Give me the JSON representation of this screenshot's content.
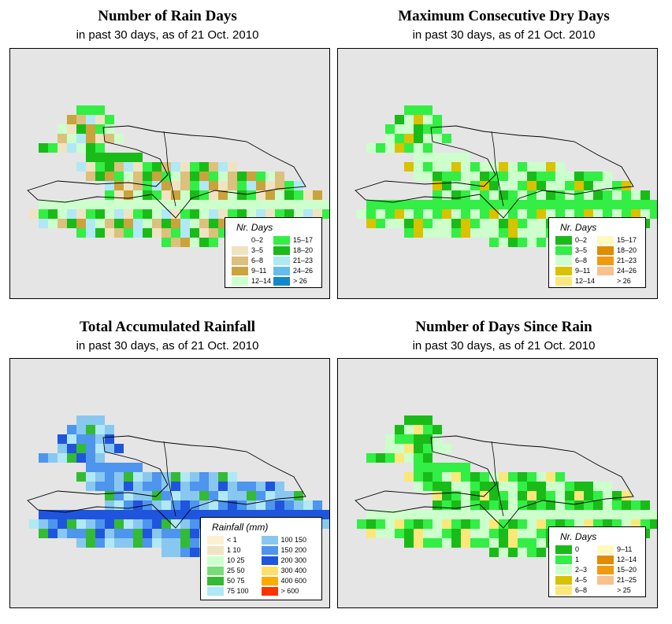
{
  "colors": {
    "background": "#e5e5e5",
    "coastline": "#000000"
  },
  "panels": [
    {
      "id": "rain-days",
      "title": "Number of Rain Days",
      "subtitle": "in past 30 days, as of  21 Oct. 2010",
      "legend_title": "Nr. Days",
      "legend_items": [
        {
          "label": "0–2",
          "color": "#ffffff"
        },
        {
          "label": "3–5",
          "color": "#f0e3c2"
        },
        {
          "label": "6–8",
          "color": "#dcc07d"
        },
        {
          "label": "9–11",
          "color": "#c9a33c"
        },
        {
          "label": "12–14",
          "color": "#ccffcc"
        },
        {
          "label": "15–17",
          "color": "#33ee44"
        },
        {
          "label": "18–20",
          "color": "#19bb19"
        },
        {
          "label": "21–23",
          "color": "#b0e8f5"
        },
        {
          "label": "24–26",
          "color": "#66bbee"
        },
        {
          "label": "> 26",
          "color": "#1188cc"
        }
      ],
      "map_fill": [
        "#33ee44",
        "#19bb19",
        "#ccffcc",
        "#c9a33c",
        "#dcc07d",
        "#b0e8f5",
        "#f0e3c2"
      ]
    },
    {
      "id": "dry-days",
      "title": "Maximum Consecutive Dry Days",
      "subtitle": "in past 30 days, as of  21 Oct. 2010",
      "legend_title": "Nr. Days",
      "legend_items": [
        {
          "label": "0–2",
          "color": "#19bb19"
        },
        {
          "label": "3–5",
          "color": "#33ee44"
        },
        {
          "label": "6–8",
          "color": "#ccffcc"
        },
        {
          "label": "9–11",
          "color": "#d9c200"
        },
        {
          "label": "12–14",
          "color": "#fce77a"
        },
        {
          "label": "15–17",
          "color": "#fff9c0"
        },
        {
          "label": "18–20",
          "color": "#e08b00"
        },
        {
          "label": "21–23",
          "color": "#f09a10"
        },
        {
          "label": "24–26",
          "color": "#f7c190"
        },
        {
          "label": "> 26",
          "color": "#ffffff"
        }
      ],
      "map_fill": [
        "#33ee44",
        "#ccffcc",
        "#33ee44",
        "#19bb19",
        "#ccffcc",
        "#d9c200",
        "#ccffcc"
      ]
    },
    {
      "id": "rainfall",
      "title": "Total Accumulated Rainfall",
      "subtitle": "in past 30 days, as of  21 Oct. 2010",
      "legend_title": "Rainfall (mm)",
      "legend_items": [
        {
          "label": "< 1",
          "color": "#fbf0d2"
        },
        {
          "label": "1   10",
          "color": "#f0e3c2"
        },
        {
          "label": "10   25",
          "color": "#ccffcc"
        },
        {
          "label": "25   50",
          "color": "#77dd77"
        },
        {
          "label": "50   75",
          "color": "#33bb33"
        },
        {
          "label": "75   100",
          "color": "#b0e8f5"
        },
        {
          "label": "100   150",
          "color": "#88c8f0"
        },
        {
          "label": "150   200",
          "color": "#4e95ee"
        },
        {
          "label": "200   300",
          "color": "#1f55dd"
        },
        {
          "label": "300   400",
          "color": "#ffe066"
        },
        {
          "label": "400   600",
          "color": "#ffaa00"
        },
        {
          "label": "> 600",
          "color": "#ff3300"
        }
      ],
      "map_fill": [
        "#88c8f0",
        "#4e95ee",
        "#1f55dd",
        "#4e95ee",
        "#88c8f0",
        "#33bb33",
        "#b0e8f5"
      ]
    },
    {
      "id": "since-rain",
      "title": "Number of Days Since Rain",
      "subtitle": "in past 30 days, as of  21 Oct. 2010",
      "legend_title": "Nr. Days",
      "legend_items": [
        {
          "label": "0",
          "color": "#19bb19"
        },
        {
          "label": "1",
          "color": "#33ee44"
        },
        {
          "label": "2–3",
          "color": "#ccffcc"
        },
        {
          "label": "4–5",
          "color": "#d9c200"
        },
        {
          "label": "6–8",
          "color": "#fce77a"
        },
        {
          "label": "9–11",
          "color": "#fff9c0"
        },
        {
          "label": "12–14",
          "color": "#e08b00"
        },
        {
          "label": "15–20",
          "color": "#f09a10"
        },
        {
          "label": "21–25",
          "color": "#f7c190"
        },
        {
          "label": "> 25",
          "color": "#ffffff"
        }
      ],
      "map_fill": [
        "#19bb19",
        "#33ee44",
        "#ccffcc",
        "#19bb19",
        "#ccffcc",
        "#fce77a",
        "#33ee44"
      ]
    }
  ]
}
